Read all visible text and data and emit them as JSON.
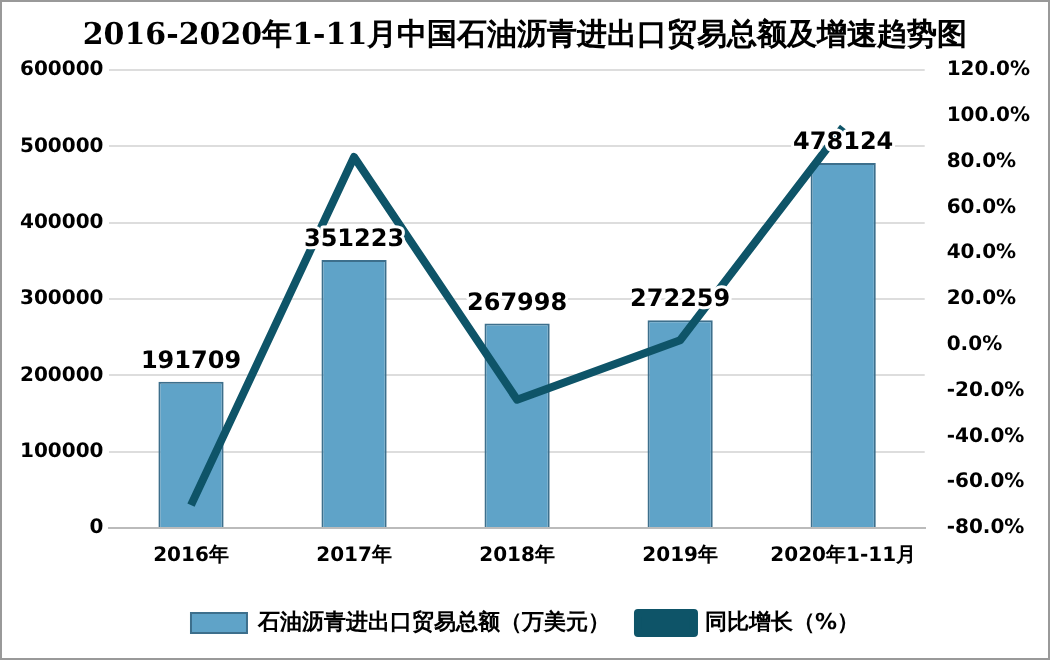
{
  "chart_data": {
    "type": "bar",
    "title": "2016-2020年1-11月中国石油沥青进出口贸易总额及增速趋势图",
    "categories": [
      "2016年",
      "2017年",
      "2018年",
      "2019年",
      "2020年1-11月"
    ],
    "series": [
      {
        "name": "石油沥青进出口贸易总额（万美元）",
        "color": "#5fa3c8",
        "values": [
          191709,
          351223,
          267998,
          272259,
          478124
        ],
        "value_labels": [
          "191709",
          "351223",
          "267998",
          "272259",
          "478124"
        ]
      },
      {
        "name": "同比增长（%）",
        "type": "line",
        "axis": "y2",
        "color": "#0e5468",
        "values": [
          -70,
          82,
          -24,
          2,
          95
        ]
      }
    ],
    "ylim": [
      0,
      600000
    ],
    "yticks": [
      0,
      100000,
      200000,
      300000,
      400000,
      500000,
      600000
    ],
    "y2lim": [
      -80,
      120
    ],
    "y2ticks": [
      {
        "value": -80,
        "label": "-80.0%"
      },
      {
        "value": -60,
        "label": "-60.0%"
      },
      {
        "value": -40,
        "label": "-40.0%"
      },
      {
        "value": -20,
        "label": "-20.0%"
      },
      {
        "value": 0,
        "label": "0.0%"
      },
      {
        "value": 20,
        "label": "20.0%"
      },
      {
        "value": 40,
        "label": "40.0%"
      },
      {
        "value": 60,
        "label": "60.0%"
      },
      {
        "value": 80,
        "label": "80.0%"
      },
      {
        "value": 100,
        "label": "100.0%"
      },
      {
        "value": 120,
        "label": "120.0%"
      }
    ],
    "grid": "y",
    "legend": "bottom",
    "marker": "none"
  }
}
